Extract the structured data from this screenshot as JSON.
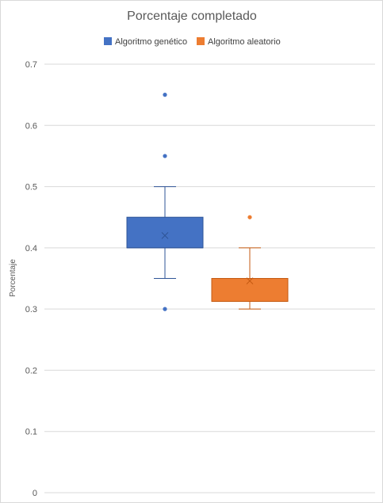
{
  "chart_data": {
    "type": "box",
    "title": "Porcentaje completado",
    "xlabel": "",
    "ylabel": "Porcentaje",
    "ylim": [
      0,
      0.7
    ],
    "yticks": [
      "0",
      "0.1",
      "0.2",
      "0.3",
      "0.4",
      "0.5",
      "0.6",
      "0.7"
    ],
    "grid": true,
    "legend_position": "top",
    "series": [
      {
        "name": "Algoritmo genético",
        "color": "#4472C4",
        "whisker_low": 0.35,
        "q1": 0.4,
        "median": 0.4,
        "q3": 0.45,
        "whisker_high": 0.5,
        "mean": 0.42,
        "outliers": [
          0.65,
          0.55,
          0.3
        ]
      },
      {
        "name": "Algoritmo aleatorio",
        "color": "#ED7D31",
        "whisker_low": 0.3,
        "q1": 0.3125,
        "median": 0.3125,
        "q3": 0.35,
        "whisker_high": 0.4,
        "mean": 0.346,
        "outliers": [
          0.45
        ]
      }
    ]
  }
}
